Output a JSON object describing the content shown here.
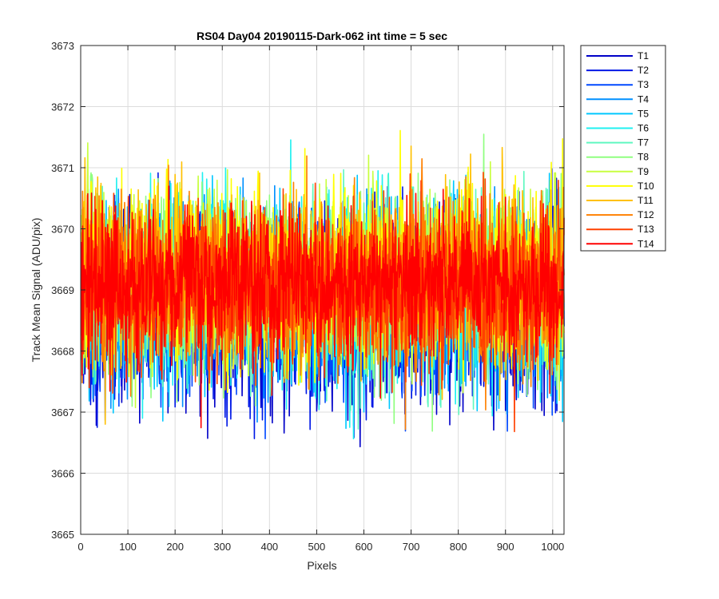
{
  "chart_data": {
    "type": "line",
    "title": "RS04 Day04 20190115-Dark-062 int time = 5 sec",
    "xlabel": "Pixels",
    "ylabel": "Track Mean Signal (ADU/pix)",
    "xlim": [
      0,
      1024
    ],
    "ylim": [
      3665,
      3673
    ],
    "xticks": [
      0,
      100,
      200,
      300,
      400,
      500,
      600,
      700,
      800,
      900,
      1000
    ],
    "yticks": [
      3665,
      3666,
      3667,
      3668,
      3669,
      3670,
      3671,
      3672,
      3673
    ],
    "grid": true,
    "legend_position": "outside-top-right",
    "n_points": 1024,
    "series": [
      {
        "name": "T1",
        "color": "#0000c8",
        "center": 3668.6,
        "spread": 1.0,
        "seed": 11
      },
      {
        "name": "T2",
        "color": "#0018e6",
        "center": 3668.7,
        "spread": 1.0,
        "seed": 23
      },
      {
        "name": "T3",
        "color": "#0048ff",
        "center": 3668.8,
        "spread": 1.0,
        "seed": 37
      },
      {
        "name": "T4",
        "color": "#0090ff",
        "center": 3668.9,
        "spread": 1.0,
        "seed": 41
      },
      {
        "name": "T5",
        "color": "#00c8ff",
        "center": 3668.9,
        "spread": 1.0,
        "seed": 53
      },
      {
        "name": "T6",
        "color": "#20f0f0",
        "center": 3669.0,
        "spread": 1.0,
        "seed": 67
      },
      {
        "name": "T7",
        "color": "#60f8c0",
        "center": 3669.0,
        "spread": 1.0,
        "seed": 71
      },
      {
        "name": "T8",
        "color": "#90ff80",
        "center": 3669.1,
        "spread": 1.0,
        "seed": 83
      },
      {
        "name": "T9",
        "color": "#c8ff40",
        "center": 3669.2,
        "spread": 1.0,
        "seed": 97
      },
      {
        "name": "T10",
        "color": "#ffff00",
        "center": 3669.3,
        "spread": 1.0,
        "seed": 101
      },
      {
        "name": "T11",
        "color": "#ffc000",
        "center": 3669.2,
        "spread": 0.95,
        "seed": 113
      },
      {
        "name": "T12",
        "color": "#ff8000",
        "center": 3669.1,
        "spread": 0.95,
        "seed": 127
      },
      {
        "name": "T13",
        "color": "#ff4000",
        "center": 3669.0,
        "spread": 0.9,
        "seed": 131
      },
      {
        "name": "T14",
        "color": "#ff0000",
        "center": 3669.1,
        "spread": 0.8,
        "seed": 139
      }
    ]
  }
}
